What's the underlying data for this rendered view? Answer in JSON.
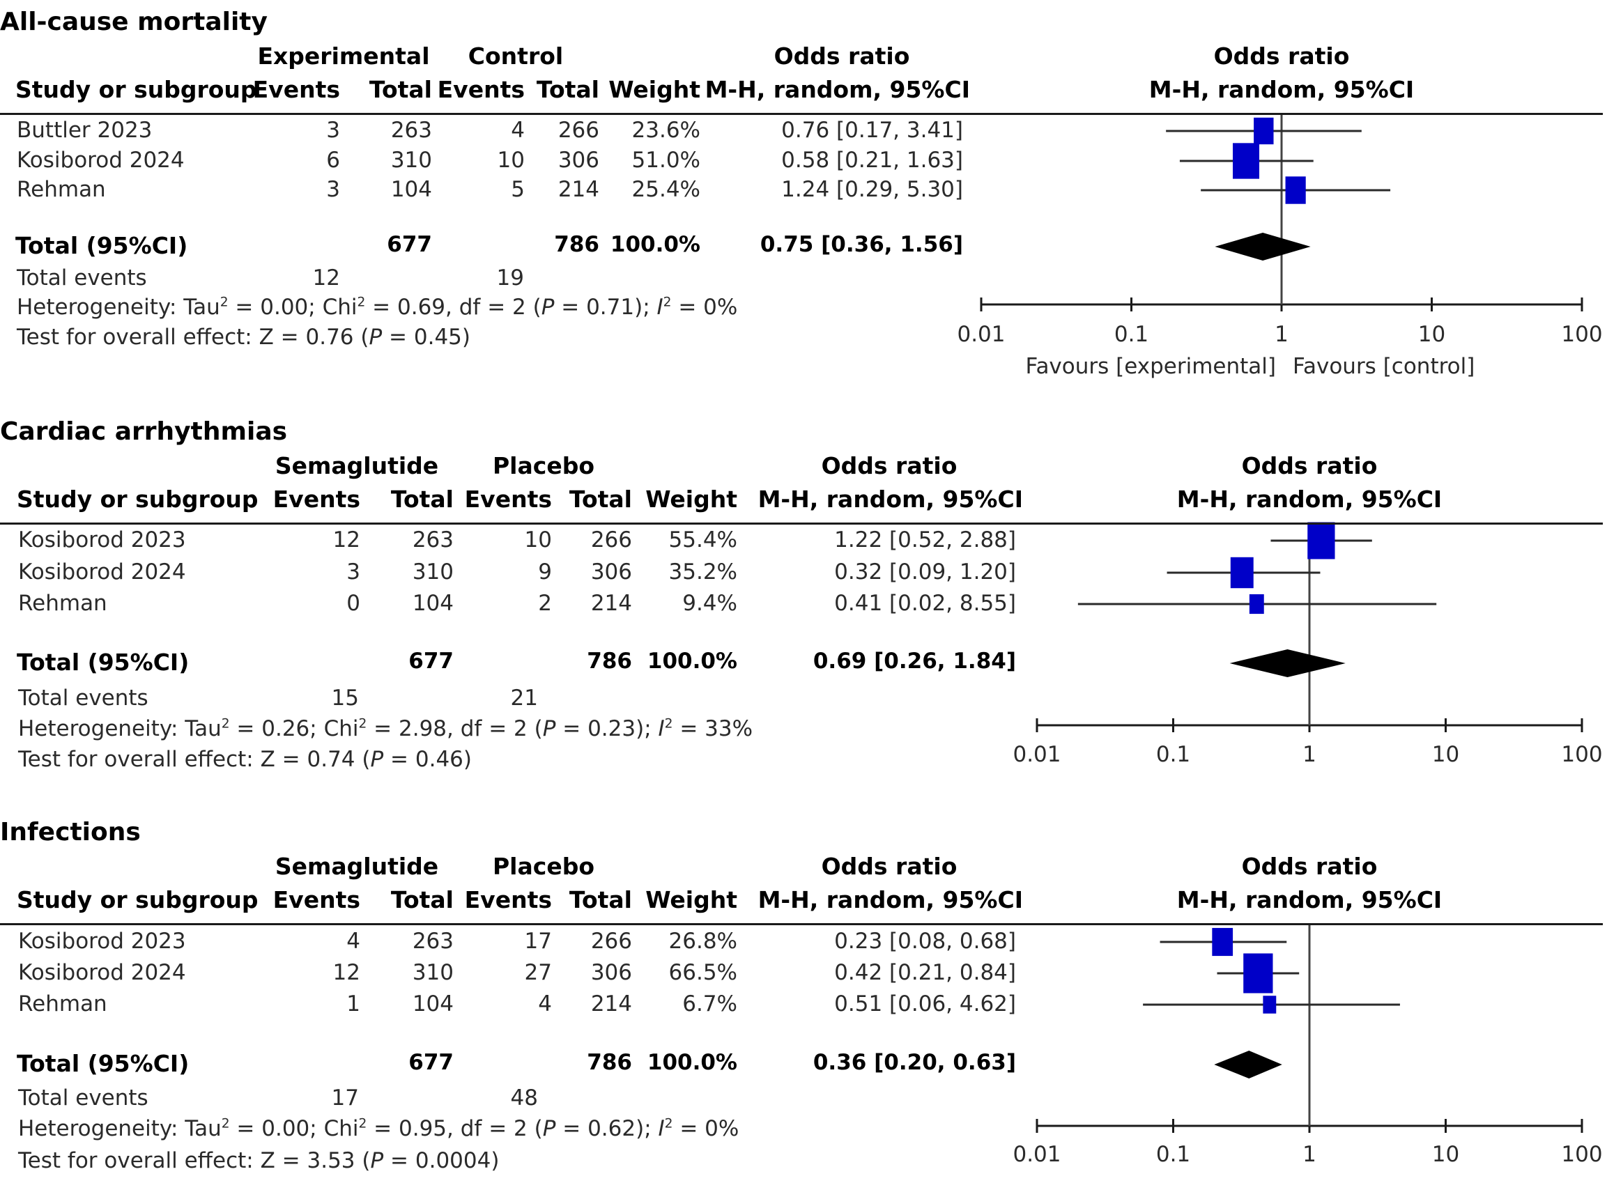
{
  "colors": {
    "study_marker": "#0000c8",
    "pooled_marker": "#000000",
    "ci_line": "#2a2a2a",
    "text": "#2a2a2a"
  },
  "chart_data": [
    {
      "type": "forest",
      "title": "All-cause mortality",
      "group_headers": {
        "experimental": "Experimental",
        "control": "Control",
        "or_text": "Odds ratio",
        "or_plot": "Odds ratio"
      },
      "column_headers": {
        "study": "Study or subgroup",
        "exp_events": "Events",
        "exp_total": "Total",
        "ctrl_events": "Events",
        "ctrl_total": "Total",
        "weight": "Weight",
        "or_text": "M-H, random, 95%CI",
        "or_plot": "M-H, random, 95%CI"
      },
      "studies": [
        {
          "name": "Buttler 2023",
          "exp_events": "3",
          "exp_total": "263",
          "ctrl_events": "4",
          "ctrl_total": "266",
          "weight": "23.6%",
          "or_label": "0.76 [0.17, 3.41]",
          "or": 0.76,
          "lo": 0.17,
          "hi": 3.41,
          "w": 23.6
        },
        {
          "name": "Kosiborod 2024",
          "exp_events": "6",
          "exp_total": "310",
          "ctrl_events": "10",
          "ctrl_total": "306",
          "weight": "51.0%",
          "or_label": "0.58 [0.21, 1.63]",
          "or": 0.58,
          "lo": 0.21,
          "hi": 1.63,
          "w": 51.0
        },
        {
          "name": "Rehman",
          "exp_events": "3",
          "exp_total": "104",
          "ctrl_events": "5",
          "ctrl_total": "214",
          "weight": "25.4%",
          "or_label": "1.24 [0.29, 5.30]",
          "or": 1.24,
          "lo": 0.29,
          "hi": 5.3,
          "w": 25.4
        }
      ],
      "total": {
        "label": "Total (95%CI)",
        "exp_total": "677",
        "ctrl_total": "786",
        "weight": "100.0%",
        "or_label": "0.75 [0.36, 1.56]",
        "or": 0.75,
        "lo": 0.36,
        "hi": 1.56
      },
      "total_events": {
        "label": "Total events",
        "exp": "12",
        "ctrl": "19"
      },
      "heterogeneity": {
        "prefix": "Heterogeneity: Tau",
        "tau2": " = 0.00; Chi",
        "chi2": " = 0.69, df = 2 (",
        "p": " = 0.71); ",
        "i2": " = 0%"
      },
      "overall": {
        "prefix": "Test for overall effect: Z = 0.76 (",
        "p": " = 0.45)"
      },
      "axis": {
        "scale": "log",
        "range": [
          0.01,
          100
        ],
        "ticks": [
          "0.01",
          "0.1",
          "1",
          "10",
          "100"
        ],
        "tick_values": [
          0.01,
          0.1,
          1,
          10,
          100
        ]
      },
      "favours": {
        "left": "Favours [experimental]",
        "right": "Favours [control]"
      }
    },
    {
      "type": "forest",
      "title": "Cardiac arrhythmias",
      "group_headers": {
        "experimental": "Semaglutide",
        "control": "Placebo",
        "or_text": "Odds ratio",
        "or_plot": "Odds ratio"
      },
      "column_headers": {
        "study": "Study or subgroup",
        "exp_events": "Events",
        "exp_total": "Total",
        "ctrl_events": "Events",
        "ctrl_total": "Total",
        "weight": "Weight",
        "or_text": "M-H, random, 95%CI",
        "or_plot": "M-H, random, 95%CI"
      },
      "studies": [
        {
          "name": "Kosiborod 2023",
          "exp_events": "12",
          "exp_total": "263",
          "ctrl_events": "10",
          "ctrl_total": "266",
          "weight": "55.4%",
          "or_label": "1.22 [0.52, 2.88]",
          "or": 1.22,
          "lo": 0.52,
          "hi": 2.88,
          "w": 55.4
        },
        {
          "name": "Kosiborod 2024",
          "exp_events": "3",
          "exp_total": "310",
          "ctrl_events": "9",
          "ctrl_total": "306",
          "weight": "35.2%",
          "or_label": "0.32 [0.09, 1.20]",
          "or": 0.32,
          "lo": 0.09,
          "hi": 1.2,
          "w": 35.2
        },
        {
          "name": "Rehman",
          "exp_events": "0",
          "exp_total": "104",
          "ctrl_events": "2",
          "ctrl_total": "214",
          "weight": "9.4%",
          "or_label": "0.41 [0.02, 8.55]",
          "or": 0.41,
          "lo": 0.02,
          "hi": 8.55,
          "w": 9.4
        }
      ],
      "total": {
        "label": "Total (95%CI)",
        "exp_total": "677",
        "ctrl_total": "786",
        "weight": "100.0%",
        "or_label": "0.69 [0.26, 1.84]",
        "or": 0.69,
        "lo": 0.26,
        "hi": 1.84
      },
      "total_events": {
        "label": "Total events",
        "exp": "15",
        "ctrl": "21"
      },
      "heterogeneity": {
        "prefix": "Heterogeneity: Tau",
        "tau2": " = 0.26; Chi",
        "chi2": " = 2.98, df = 2 (",
        "p": " = 0.23); ",
        "i2": " = 33%"
      },
      "overall": {
        "prefix": "Test for overall effect: Z = 0.74 (",
        "p": " = 0.46)"
      },
      "axis": {
        "scale": "log",
        "range": [
          0.01,
          100
        ],
        "ticks": [
          "0.01",
          "0.1",
          "1",
          "10",
          "100"
        ],
        "tick_values": [
          0.01,
          0.1,
          1,
          10,
          100
        ]
      }
    },
    {
      "type": "forest",
      "title": "Infections",
      "group_headers": {
        "experimental": "Semaglutide",
        "control": "Placebo",
        "or_text": "Odds ratio",
        "or_plot": "Odds ratio"
      },
      "column_headers": {
        "study": "Study or subgroup",
        "exp_events": "Events",
        "exp_total": "Total",
        "ctrl_events": "Events",
        "ctrl_total": "Total",
        "weight": "Weight",
        "or_text": "M-H, random, 95%CI",
        "or_plot": "M-H, random, 95%CI"
      },
      "studies": [
        {
          "name": "Kosiborod 2023",
          "exp_events": "4",
          "exp_total": "263",
          "ctrl_events": "17",
          "ctrl_total": "266",
          "weight": "26.8%",
          "or_label": "0.23 [0.08, 0.68]",
          "or": 0.23,
          "lo": 0.08,
          "hi": 0.68,
          "w": 26.8
        },
        {
          "name": "Kosiborod 2024",
          "exp_events": "12",
          "exp_total": "310",
          "ctrl_events": "27",
          "ctrl_total": "306",
          "weight": "66.5%",
          "or_label": "0.42 [0.21, 0.84]",
          "or": 0.42,
          "lo": 0.21,
          "hi": 0.84,
          "w": 66.5
        },
        {
          "name": "Rehman",
          "exp_events": "1",
          "exp_total": "104",
          "ctrl_events": "4",
          "ctrl_total": "214",
          "weight": "6.7%",
          "or_label": "0.51 [0.06, 4.62]",
          "or": 0.51,
          "lo": 0.06,
          "hi": 4.62,
          "w": 6.7
        }
      ],
      "total": {
        "label": "Total (95%CI)",
        "exp_total": "677",
        "ctrl_total": "786",
        "weight": "100.0%",
        "or_label": "0.36 [0.20, 0.63]",
        "or": 0.36,
        "lo": 0.2,
        "hi": 0.63
      },
      "total_events": {
        "label": "Total events",
        "exp": "17",
        "ctrl": "48"
      },
      "heterogeneity": {
        "prefix": "Heterogeneity: Tau",
        "tau2": " = 0.00; Chi",
        "chi2": " = 0.95, df = 2 (",
        "p": " = 0.62); ",
        "i2": " = 0%"
      },
      "overall": {
        "prefix": "Test for overall effect: Z = 3.53 (",
        "p": " = 0.0004)"
      },
      "axis": {
        "scale": "log",
        "range": [
          0.01,
          100
        ],
        "ticks": [
          "0.01",
          "0.1",
          "1",
          "10",
          "100"
        ],
        "tick_values": [
          0.01,
          0.1,
          1,
          10,
          100
        ]
      }
    }
  ],
  "labels": {
    "sup2": "2",
    "P": "P",
    "I": "I"
  }
}
